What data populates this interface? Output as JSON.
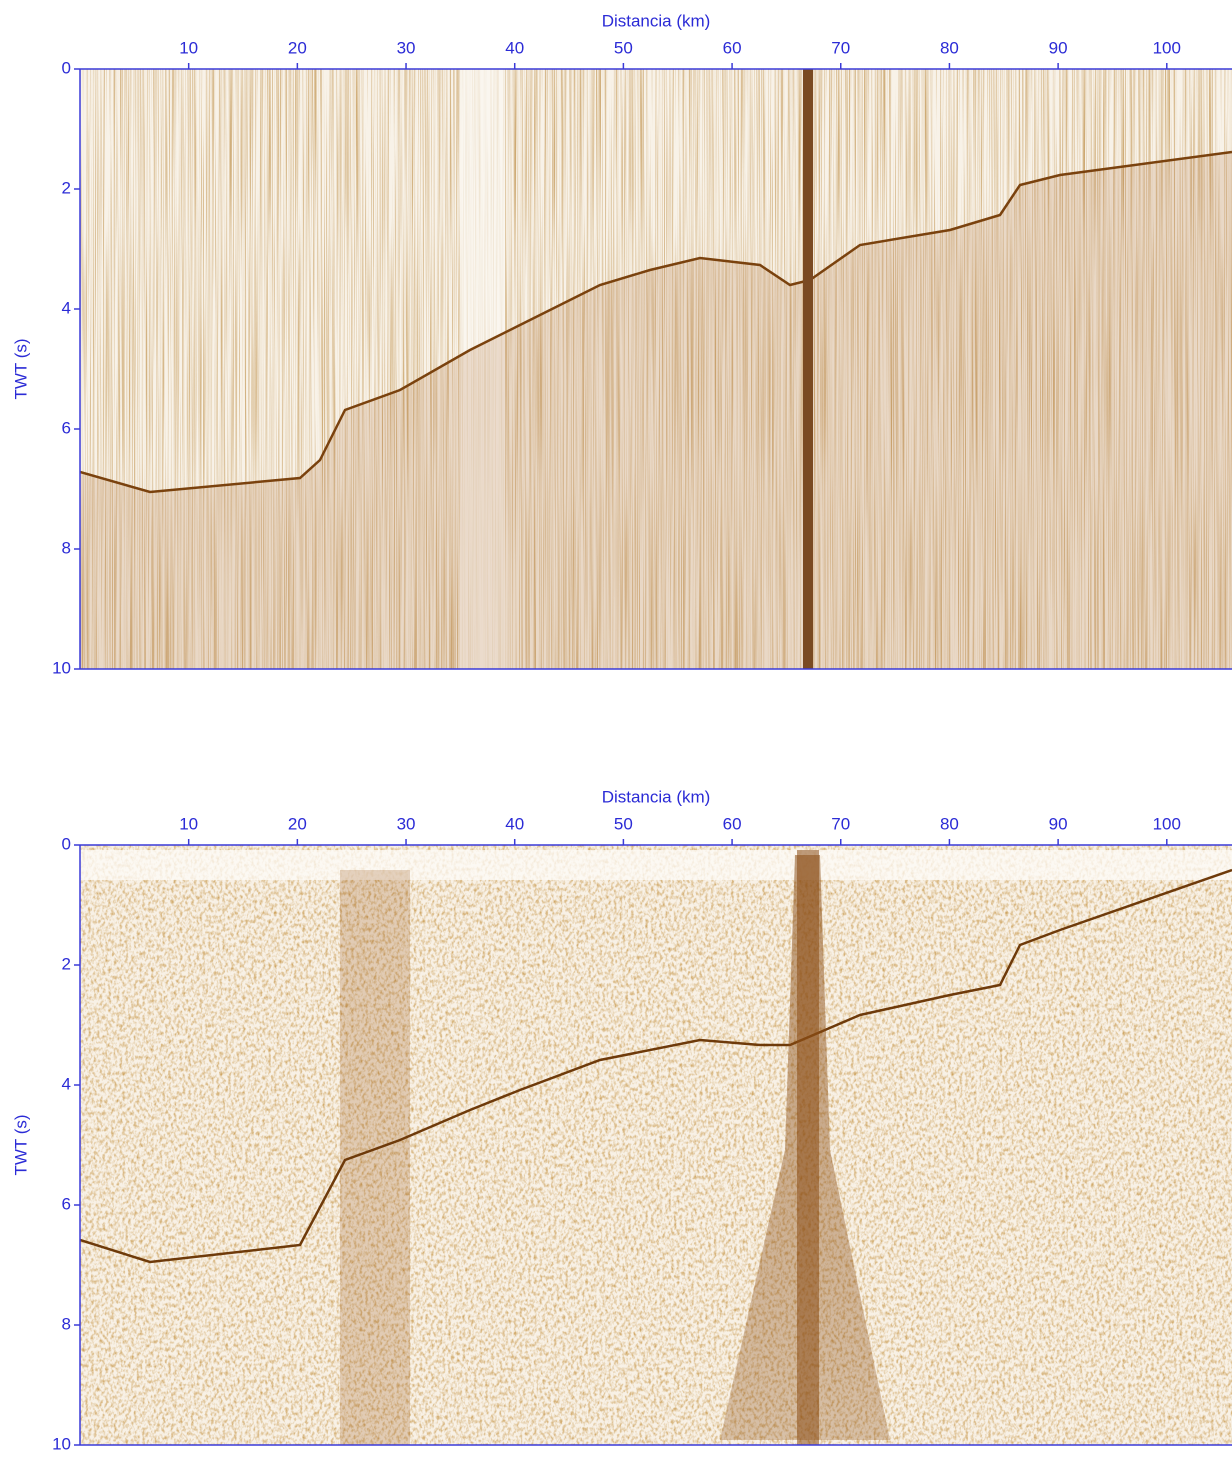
{
  "chart_data": [
    {
      "type": "seismic",
      "x_label": "Distancia (km)",
      "y_label": "TWT (s)",
      "xlim": [
        0,
        106
      ],
      "ylim": [
        0,
        10
      ],
      "xticks": [
        10,
        20,
        30,
        40,
        50,
        60,
        70,
        80,
        90,
        100
      ],
      "yticks": [
        0,
        2,
        4,
        6,
        8,
        10
      ],
      "axis_color": "#3a3ad8"
    },
    {
      "type": "seismic",
      "x_label": "Distancia (km)",
      "y_label": "TWT (s)",
      "xlim": [
        0,
        106
      ],
      "ylim": [
        0,
        10
      ],
      "xticks": [
        10,
        20,
        30,
        40,
        50,
        60,
        70,
        80,
        90,
        100
      ],
      "yticks": [
        0,
        2,
        4,
        6,
        8,
        10
      ],
      "axis_color": "#3a3ad8"
    }
  ]
}
